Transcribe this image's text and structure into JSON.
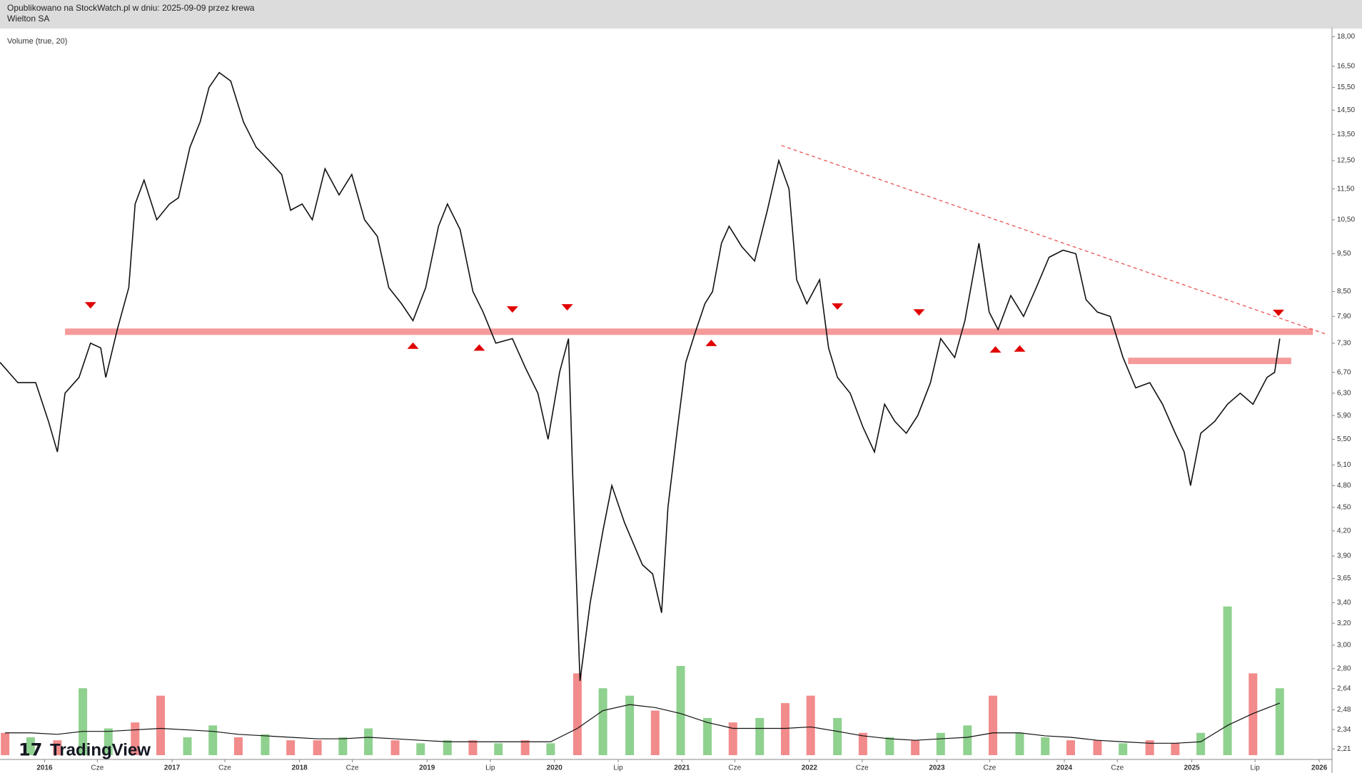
{
  "header": {
    "line1": "Opublikowano na StockWatch.pl w dniu: 2025-09-09 przez krewa",
    "line2": "Wielton SA"
  },
  "logo": "TradingView",
  "chart_data": {
    "type": "line",
    "log_scale": true,
    "color": "#111111",
    "x": [
      2015.65,
      2015.79,
      2015.93,
      2016.03,
      2016.1,
      2016.16,
      2016.27,
      2016.36,
      2016.44,
      2016.48,
      2016.57,
      2016.66,
      2016.71,
      2016.78,
      2016.88,
      2016.98,
      2017.05,
      2017.14,
      2017.22,
      2017.29,
      2017.37,
      2017.46,
      2017.56,
      2017.66,
      2017.76,
      2017.86,
      2017.93,
      2018.02,
      2018.1,
      2018.2,
      2018.31,
      2018.41,
      2018.51,
      2018.61,
      2018.7,
      2018.8,
      2018.89,
      2018.99,
      2019.09,
      2019.16,
      2019.26,
      2019.36,
      2019.44,
      2019.54,
      2019.67,
      2019.77,
      2019.87,
      2019.95,
      2020.04,
      2020.11,
      2020.14,
      2020.2,
      2020.28,
      2020.38,
      2020.45,
      2020.55,
      2020.69,
      2020.77,
      2020.84,
      2020.89,
      2020.96,
      2021.03,
      2021.1,
      2021.18,
      2021.24,
      2021.31,
      2021.37,
      2021.47,
      2021.57,
      2021.67,
      2021.76,
      2021.84,
      2021.9,
      2021.98,
      2022.08,
      2022.15,
      2022.22,
      2022.32,
      2022.42,
      2022.51,
      2022.59,
      2022.67,
      2022.76,
      2022.85,
      2022.95,
      2023.03,
      2023.14,
      2023.22,
      2023.33,
      2023.41,
      2023.48,
      2023.58,
      2023.68,
      2023.78,
      2023.88,
      2023.99,
      2024.09,
      2024.17,
      2024.26,
      2024.36,
      2024.46,
      2024.56,
      2024.67,
      2024.77,
      2024.87,
      2024.94,
      2024.99,
      2025.07,
      2025.18,
      2025.28,
      2025.38,
      2025.48,
      2025.59,
      2025.65,
      2025.69
    ],
    "values": [
      6.9,
      6.5,
      6.5,
      5.8,
      5.3,
      6.3,
      6.6,
      7.3,
      7.2,
      6.6,
      7.6,
      8.6,
      11.0,
      11.8,
      10.5,
      11.0,
      11.2,
      13.0,
      14.0,
      15.5,
      16.2,
      15.8,
      14.0,
      13.0,
      12.5,
      12.0,
      10.8,
      11.0,
      10.5,
      12.2,
      11.3,
      12.0,
      10.5,
      10.0,
      8.6,
      8.2,
      7.8,
      8.6,
      10.3,
      11.0,
      10.2,
      8.5,
      8.0,
      7.3,
      7.4,
      6.8,
      6.3,
      5.5,
      6.7,
      7.4,
      5.1,
      2.7,
      3.4,
      4.2,
      4.8,
      4.3,
      3.8,
      3.7,
      3.3,
      4.5,
      5.6,
      6.9,
      7.5,
      8.2,
      8.5,
      9.8,
      10.3,
      9.7,
      9.3,
      10.8,
      12.5,
      11.5,
      8.8,
      8.2,
      8.8,
      7.2,
      6.6,
      6.3,
      5.7,
      5.3,
      6.1,
      5.8,
      5.6,
      5.9,
      6.5,
      7.4,
      7.0,
      7.8,
      9.8,
      8.0,
      7.6,
      8.4,
      7.9,
      8.6,
      9.4,
      9.6,
      9.5,
      8.3,
      8.0,
      7.9,
      7.0,
      6.4,
      6.5,
      6.1,
      5.6,
      5.3,
      4.8,
      5.6,
      5.8,
      6.1,
      6.3,
      6.1,
      6.6,
      6.7,
      7.4
    ],
    "xlim": [
      2015.65,
      2026.1
    ],
    "xticks": [
      {
        "value": 2016,
        "label": "2016"
      },
      {
        "value": 2016.414,
        "label": "Cze"
      },
      {
        "value": 2017,
        "label": "2017"
      },
      {
        "value": 2017.414,
        "label": "Cze"
      },
      {
        "value": 2018,
        "label": "2018"
      },
      {
        "value": 2018.414,
        "label": "Cze"
      },
      {
        "value": 2019,
        "label": "2019"
      },
      {
        "value": 2019.496,
        "label": "Lip"
      },
      {
        "value": 2020,
        "label": "2020"
      },
      {
        "value": 2020.5,
        "label": "Lip"
      },
      {
        "value": 2021,
        "label": "2021"
      },
      {
        "value": 2021.414,
        "label": "Cze"
      },
      {
        "value": 2022,
        "label": "2022"
      },
      {
        "value": 2022.414,
        "label": "Cze"
      },
      {
        "value": 2023,
        "label": "2023"
      },
      {
        "value": 2023.414,
        "label": "Cze"
      },
      {
        "value": 2024,
        "label": "2024"
      },
      {
        "value": 2024.416,
        "label": "Cze"
      },
      {
        "value": 2025,
        "label": "2025"
      },
      {
        "value": 2025.496,
        "label": "Lip"
      },
      {
        "value": 2026,
        "label": "2026"
      }
    ],
    "ylim": [
      2.17,
      18.4
    ],
    "yticks": [
      {
        "value": 18,
        "label": "18,00"
      },
      {
        "value": 16.5,
        "label": "16,50"
      },
      {
        "value": 15.5,
        "label": "15,50"
      },
      {
        "value": 14.5,
        "label": "14,50"
      },
      {
        "value": 13.5,
        "label": "13,50"
      },
      {
        "value": 12.5,
        "label": "12,50"
      },
      {
        "value": 11.5,
        "label": "11,50"
      },
      {
        "value": 10.5,
        "label": "10,50"
      },
      {
        "value": 9.5,
        "label": "9,50"
      },
      {
        "value": 8.5,
        "label": "8,50"
      },
      {
        "value": 7.9,
        "label": "7,90"
      },
      {
        "value": 7.3,
        "label": "7,30"
      },
      {
        "value": 6.7,
        "label": "6,70"
      },
      {
        "value": 6.3,
        "label": "6,30"
      },
      {
        "value": 5.9,
        "label": "5,90"
      },
      {
        "value": 5.5,
        "label": "5,50"
      },
      {
        "value": 5.1,
        "label": "5,10"
      },
      {
        "value": 4.8,
        "label": "4,80"
      },
      {
        "value": 4.5,
        "label": "4,50"
      },
      {
        "value": 4.2,
        "label": "4,20"
      },
      {
        "value": 3.9,
        "label": "3,90"
      },
      {
        "value": 3.65,
        "label": "3,65"
      },
      {
        "value": 3.4,
        "label": "3,40"
      },
      {
        "value": 3.2,
        "label": "3,20"
      },
      {
        "value": 3,
        "label": "3,00"
      },
      {
        "value": 2.8,
        "label": "2,80"
      },
      {
        "value": 2.64,
        "label": "2,64"
      },
      {
        "value": 2.48,
        "label": "2,48"
      },
      {
        "value": 2.34,
        "label": "2,34"
      },
      {
        "value": 2.21,
        "label": "2,21"
      }
    ],
    "volume": {
      "label": "Volume (true, 20)",
      "ylim": [
        0,
        120
      ],
      "ma_color": "#111111",
      "x": [
        2015.69,
        2015.89,
        2016.1,
        2016.3,
        2016.5,
        2016.71,
        2016.91,
        2017.12,
        2017.32,
        2017.52,
        2017.73,
        2017.93,
        2018.14,
        2018.34,
        2018.54,
        2018.75,
        2018.95,
        2019.16,
        2019.36,
        2019.56,
        2019.77,
        2019.97,
        2020.18,
        2020.38,
        2020.59,
        2020.79,
        2020.99,
        2021.2,
        2021.4,
        2021.61,
        2021.81,
        2022.01,
        2022.22,
        2022.42,
        2022.63,
        2022.83,
        2023.03,
        2023.24,
        2023.44,
        2023.65,
        2023.85,
        2024.05,
        2024.26,
        2024.46,
        2024.67,
        2024.87,
        2025.07,
        2025.28,
        2025.48,
        2025.69
      ],
      "values": [
        15,
        12,
        10,
        45,
        18,
        22,
        40,
        12,
        20,
        12,
        14,
        10,
        10,
        12,
        18,
        10,
        8,
        10,
        10,
        8,
        10,
        8,
        55,
        45,
        40,
        30,
        60,
        25,
        22,
        25,
        35,
        40,
        25,
        15,
        12,
        10,
        15,
        20,
        40,
        15,
        12,
        10,
        10,
        8,
        10,
        8,
        15,
        100,
        55,
        45
      ],
      "colors": [
        "#f28b8b",
        "#8fd18f",
        "#f28b8b",
        "#8fd18f",
        "#8fd18f",
        "#f28b8b",
        "#f28b8b",
        "#8fd18f",
        "#8fd18f",
        "#f28b8b",
        "#8fd18f",
        "#f28b8b",
        "#f28b8b",
        "#8fd18f",
        "#8fd18f",
        "#f28b8b",
        "#8fd18f",
        "#8fd18f",
        "#f28b8b",
        "#8fd18f",
        "#f28b8b",
        "#8fd18f",
        "#f28b8b",
        "#8fd18f",
        "#8fd18f",
        "#f28b8b",
        "#8fd18f",
        "#8fd18f",
        "#f28b8b",
        "#8fd18f",
        "#f28b8b",
        "#f28b8b",
        "#8fd18f",
        "#f28b8b",
        "#8fd18f",
        "#f28b8b",
        "#8fd18f",
        "#8fd18f",
        "#f28b8b",
        "#8fd18f",
        "#8fd18f",
        "#f28b8b",
        "#f28b8b",
        "#8fd18f",
        "#f28b8b",
        "#f28b8b",
        "#8fd18f",
        "#8fd18f",
        "#f28b8b",
        "#8fd18f"
      ],
      "ma": [
        15,
        15,
        14,
        16,
        16,
        17,
        18,
        17,
        16,
        14,
        13,
        12,
        11,
        11,
        12,
        11,
        10,
        9,
        9,
        9,
        9,
        9,
        18,
        30,
        34,
        32,
        28,
        22,
        18,
        18,
        18,
        19,
        16,
        13,
        11,
        10,
        11,
        12,
        15,
        15,
        13,
        12,
        10,
        9,
        8,
        8,
        9,
        20,
        28,
        35
      ]
    },
    "levels": [
      {
        "x": [
          2016.16,
          2025.95
        ],
        "value": 7.55,
        "color": "#f59a9a"
      },
      {
        "x": [
          2024.5,
          2025.78
        ],
        "value": 6.93,
        "color": "#f59a9a"
      }
    ],
    "trendline": {
      "x": [
        2021.78,
        2026.05
      ],
      "values": [
        13.07,
        7.5
      ],
      "color": "#e84848"
    },
    "markers": {
      "color": "#e00000",
      "down": {
        "x": [
          2016.36,
          2019.67,
          2020.1,
          2022.22,
          2022.86,
          2025.68
        ],
        "values": [
          8.17,
          8.07,
          8.12,
          8.14,
          8.0,
          7.99
        ]
      },
      "up": {
        "x": [
          2018.89,
          2019.41,
          2021.23,
          2023.46,
          2023.65
        ],
        "values": [
          7.24,
          7.2,
          7.3,
          7.16,
          7.18
        ]
      }
    }
  }
}
